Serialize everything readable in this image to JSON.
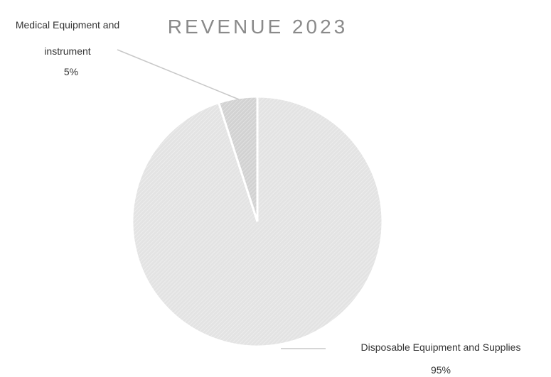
{
  "chart_data": {
    "type": "pie",
    "title": "REVENUE 2023",
    "categories": [
      "Disposable Equipment and Supplies",
      "Medical Equipment and instrument"
    ],
    "values": [
      95,
      5
    ],
    "value_labels": [
      "95%",
      "5%"
    ],
    "colors": [
      "#e3e3e3",
      "#d2d2d2"
    ]
  }
}
